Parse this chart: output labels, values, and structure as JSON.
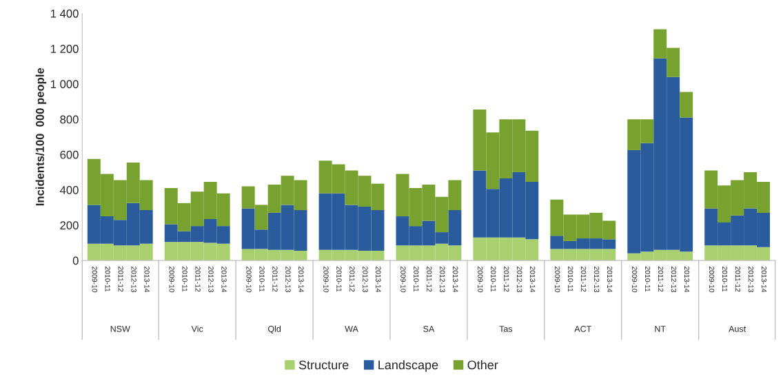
{
  "chart_data": {
    "type": "bar",
    "stacked": true,
    "ylabel": "Incidents/100  000 people",
    "categories": [
      "2009-10",
      "2010-11",
      "2011-12",
      "2012-13",
      "2013-14",
      "2009-10",
      "2010-11",
      "2011-12",
      "2012-13",
      "2013-14",
      "2009-10",
      "2010-11",
      "2011-12",
      "2012-13",
      "2013-14",
      "2009-10",
      "2010-11",
      "2011-12",
      "2012-13",
      "2013-14",
      "2009-10",
      "2010-11",
      "2011-12",
      "2012-13",
      "2013-14",
      "2009-10",
      "2010-11",
      "2011-12",
      "2012-13",
      "2013-14",
      "2009-10",
      "2010-11",
      "2011-12",
      "2012-13",
      "2013-14",
      "2009-10",
      "2010-11",
      "2011-12",
      "2012-13",
      "2013-14",
      "2009-10",
      "2010-11",
      "2011-12",
      "2012-13",
      "2013-14"
    ],
    "annotations": [
      "NSW",
      "Vic",
      "Qld",
      "WA",
      "SA",
      "Tas",
      "ACT",
      "NT",
      "Aust"
    ],
    "series": [
      {
        "name": "Structure",
        "color": "#a9d06e",
        "values": [
          95,
          95,
          85,
          85,
          95,
          105,
          105,
          105,
          100,
          95,
          65,
          65,
          60,
          60,
          55,
          60,
          60,
          60,
          55,
          55,
          85,
          85,
          85,
          95,
          85,
          130,
          130,
          130,
          130,
          120,
          65,
          65,
          65,
          65,
          65,
          40,
          50,
          60,
          60,
          50,
          85,
          85,
          85,
          85,
          75
        ]
      },
      {
        "name": "Landscape",
        "color": "#2a5b9c",
        "values": [
          220,
          155,
          145,
          240,
          190,
          100,
          60,
          90,
          135,
          100,
          230,
          110,
          210,
          255,
          230,
          320,
          320,
          255,
          250,
          230,
          165,
          110,
          140,
          65,
          200,
          380,
          275,
          335,
          370,
          325,
          75,
          45,
          60,
          60,
          55,
          585,
          615,
          1085,
          980,
          760,
          210,
          130,
          170,
          210,
          195
        ]
      },
      {
        "name": "Other",
        "color": "#77a22f",
        "values": [
          260,
          240,
          225,
          230,
          170,
          205,
          160,
          195,
          210,
          185,
          125,
          140,
          160,
          165,
          170,
          185,
          165,
          195,
          175,
          150,
          240,
          215,
          205,
          200,
          170,
          345,
          320,
          335,
          300,
          290,
          205,
          150,
          135,
          145,
          105,
          175,
          135,
          165,
          165,
          145,
          215,
          210,
          200,
          205,
          175
        ]
      }
    ],
    "ylim": [
      0,
      1400
    ],
    "yticks": [
      0,
      200,
      400,
      600,
      800,
      {
        "value": 1000,
        "label": "1 000"
      },
      {
        "value": 1200,
        "label": "1 200"
      },
      {
        "value": 1400,
        "label": "1 400"
      }
    ],
    "grid": false,
    "legend": "bottom"
  }
}
